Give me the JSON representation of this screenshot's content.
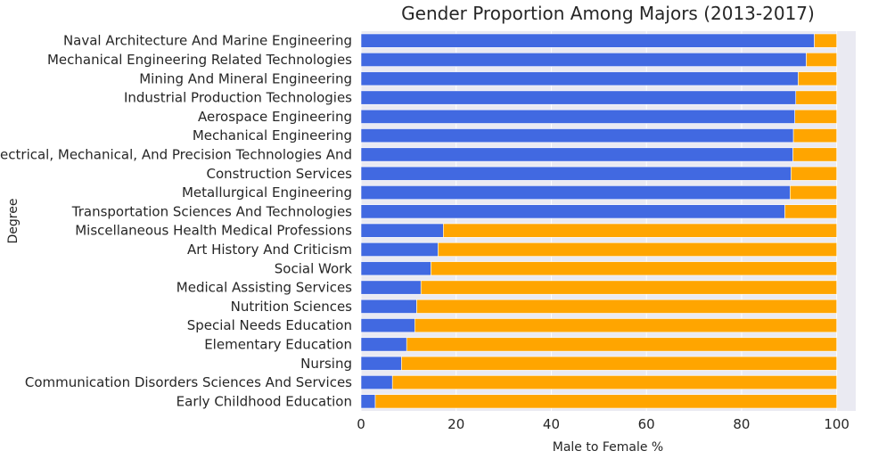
{
  "chart_data": {
    "type": "bar",
    "orientation": "horizontal",
    "stacked": true,
    "title": "Gender Proportion Among Majors (2013-2017)",
    "xlabel": "Male to Female %",
    "ylabel": "Degree",
    "xlim": [
      0,
      104
    ],
    "xticks": [
      0,
      20,
      40,
      60,
      80,
      100
    ],
    "grid": true,
    "colors": {
      "male": "#4169e1",
      "female": "#ffa500",
      "background": "#eaeaf2",
      "grid": "#ffffff"
    },
    "categories": [
      "Naval Architecture And Marine Engineering",
      "Mechanical Engineering Related Technologies",
      "Mining And Mineral Engineering",
      "Industrial Production Technologies",
      "Aerospace Engineering",
      "Mechanical Engineering",
      "Electrical, Mechanical, And Precision Technologies And",
      "Construction Services",
      "Metallurgical Engineering",
      "Transportation Sciences And Technologies",
      "Miscellaneous Health Medical Professions",
      "Art History And Criticism",
      "Social Work",
      "Medical Assisting Services",
      "Nutrition Sciences",
      "Special Needs Education",
      "Elementary Education",
      "Nursing",
      "Communication Disorders Sciences And Services",
      "Early Childhood Education"
    ],
    "series": [
      {
        "key": "male",
        "values": [
          95.3,
          93.6,
          91.9,
          91.4,
          91.2,
          90.9,
          90.8,
          90.4,
          90.2,
          89.1,
          17.3,
          16.2,
          14.7,
          12.6,
          11.7,
          11.3,
          9.6,
          8.5,
          6.6,
          3.0
        ]
      },
      {
        "key": "female",
        "values": [
          4.7,
          6.4,
          8.1,
          8.6,
          8.8,
          9.1,
          9.2,
          9.6,
          9.8,
          10.9,
          82.7,
          83.8,
          85.3,
          87.4,
          88.3,
          88.7,
          90.4,
          91.5,
          93.4,
          97.0
        ]
      }
    ]
  }
}
